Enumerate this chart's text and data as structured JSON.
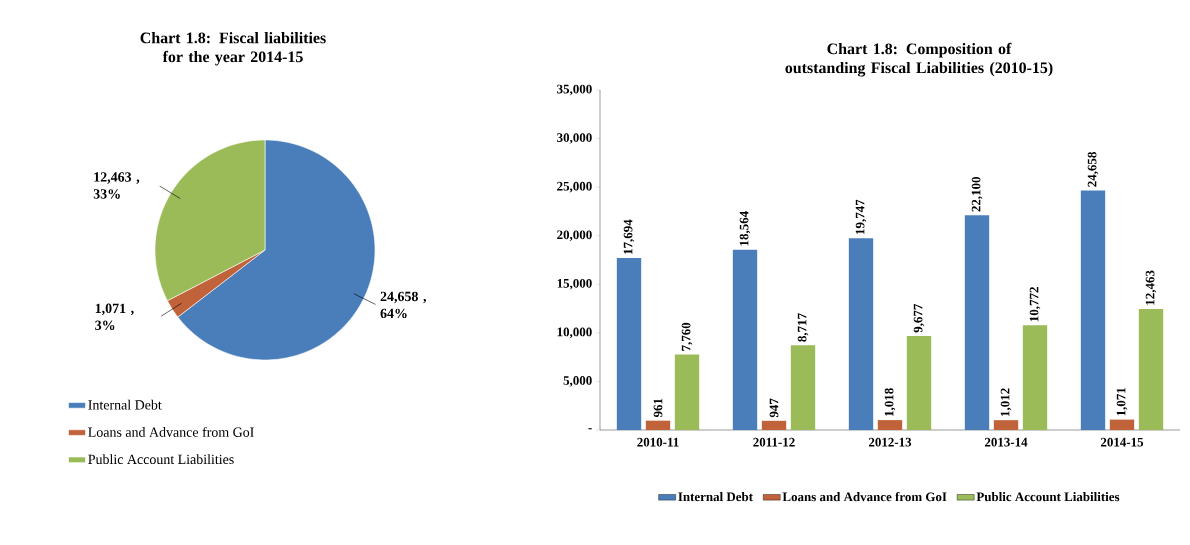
{
  "chart_data": [
    {
      "type": "pie",
      "title": "Chart 1.8: Fiscal liabilities for the year 2014-15",
      "categories": [
        "Internal Debt",
        "Loans and Advance from GoI",
        "Public Account Liabilities"
      ],
      "values": [
        24658,
        1071,
        12463
      ],
      "colors": [
        "#4a7ebb",
        "#c0623a",
        "#9bbb59"
      ],
      "value_labels": [
        "24,658 , 64%",
        "1,071 , 3%",
        "12,463 , 33%"
      ],
      "legend": "bottom left"
    },
    {
      "type": "bar",
      "title": "Chart 1.8: Composition of outstanding Fiscal Liabilities (2010-15)",
      "categories": [
        "2010-11",
        "2011-12",
        "2012-13",
        "2013-14",
        "2014-15"
      ],
      "series": [
        {
          "name": "Internal Debt",
          "color": "#4a7ebb",
          "values": [
            17694,
            18564,
            19747,
            22100,
            24658
          ],
          "value_labels": [
            "17,694",
            "18,564",
            "19,747",
            "22,100",
            "24,658"
          ]
        },
        {
          "name": "Loans and Advance from GoI",
          "color": "#c0623a",
          "values": [
            961,
            947,
            1018,
            1012,
            1071
          ],
          "value_labels": [
            "961",
            "947",
            "1,018",
            "1,012",
            "1,071"
          ]
        },
        {
          "name": "Public Account Liabilities",
          "color": "#9bbb59",
          "values": [
            7760,
            8717,
            9677,
            10772,
            12463
          ],
          "value_labels": [
            "7,760",
            "8,717",
            "9,677",
            "10,772",
            "12,463"
          ]
        }
      ],
      "ylim": [
        0,
        35000
      ],
      "yticks": [
        {
          "value": 0,
          "label": "-"
        },
        {
          "value": 5000,
          "label": "5,000"
        },
        {
          "value": 10000,
          "label": "10,000"
        },
        {
          "value": 15000,
          "label": "15,000"
        },
        {
          "value": 20000,
          "label": "20,000"
        },
        {
          "value": 25000,
          "label": "25,000"
        },
        {
          "value": 30000,
          "label": "30,000"
        },
        {
          "value": 35000,
          "label": "35,000"
        }
      ],
      "legend": "bottom"
    }
  ]
}
